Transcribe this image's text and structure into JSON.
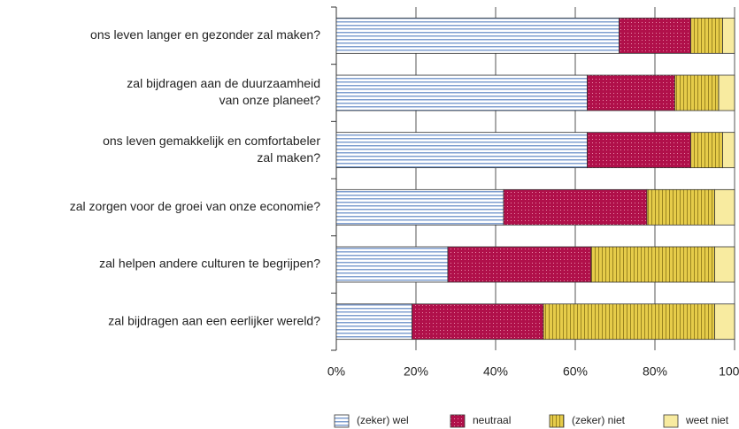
{
  "chart_data": {
    "type": "stacked-bar-horizontal",
    "categories": [
      [
        "ons leven langer en gezonder zal maken?"
      ],
      [
        "zal bijdragen aan de duurzaamheid",
        "van onze planeet?"
      ],
      [
        "ons leven gemakkelijk en comfortabeler",
        "zal maken?"
      ],
      [
        "zal zorgen voor de groei van onze economie?"
      ],
      [
        "zal helpen andere culturen te begrijpen?"
      ],
      [
        "zal bijdragen aan een eerlijker wereld?"
      ]
    ],
    "series": [
      {
        "name": "(zeker) wel",
        "color": "#7f9fd0",
        "pattern": "horizontal-lines",
        "values": [
          71,
          63,
          63,
          42,
          28,
          19
        ]
      },
      {
        "name": "neutraal",
        "color": "#b0104a",
        "pattern": "dots",
        "values": [
          18,
          22,
          26,
          36,
          36,
          33
        ]
      },
      {
        "name": "(zeker) niet",
        "color": "#e6cc4a",
        "pattern": "vertical-lines",
        "values": [
          8,
          11,
          8,
          17,
          31,
          43
        ]
      },
      {
        "name": "weet niet",
        "color": "#f8eba0",
        "pattern": "solid",
        "values": [
          3,
          4,
          3,
          5,
          5,
          5
        ]
      }
    ],
    "xlim": [
      0,
      100
    ],
    "xticks": [
      {
        "value": 0,
        "label": "0%"
      },
      {
        "value": 20,
        "label": "20%"
      },
      {
        "value": 40,
        "label": "40%"
      },
      {
        "value": 60,
        "label": "60%"
      },
      {
        "value": 80,
        "label": "80%"
      },
      {
        "value": 100,
        "label": "100%"
      }
    ],
    "grid": true
  }
}
